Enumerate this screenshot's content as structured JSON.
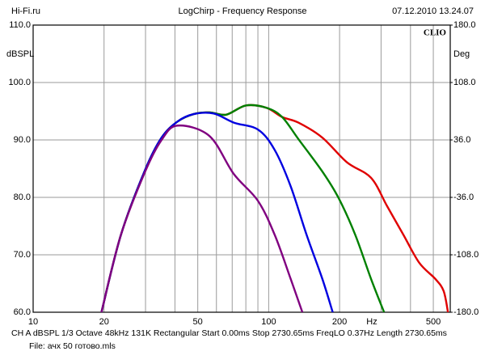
{
  "chart_data": {
    "type": "line",
    "header": [
      "Hi-Fi.ru",
      "LogChirp - Frequency Response",
      "07.12.2010 13.24.07"
    ],
    "ylabel": "dBSPL",
    "y2label": "Deg",
    "badge": "CLIO",
    "xlabel": "Hz",
    "log_x": true,
    "xlim": [
      10,
      590
    ],
    "ylim": [
      60,
      110
    ],
    "y2lim": [
      -180,
      180
    ],
    "xticks": [
      10,
      20,
      50,
      100,
      200,
      500
    ],
    "xminor": [
      30,
      40,
      60,
      70,
      80,
      90,
      300,
      400
    ],
    "yticks": [
      {
        "value": 60,
        "label": "60.0"
      },
      {
        "value": 70,
        "label": "70.0"
      },
      {
        "value": 80,
        "label": "80.0"
      },
      {
        "value": 90,
        "label": "90.0"
      },
      {
        "value": 100,
        "label": "100.0"
      },
      {
        "value": 110,
        "label": "110.0"
      }
    ],
    "y2ticks": [
      {
        "value": -180,
        "label": "-180.0"
      },
      {
        "value": -108,
        "label": "-108.0"
      },
      {
        "value": -36,
        "label": "-36.0"
      },
      {
        "value": 36,
        "label": "36.0"
      },
      {
        "value": 108,
        "label": "108.0"
      },
      {
        "value": 180,
        "label": "180.0"
      }
    ],
    "grid": true,
    "series": [
      {
        "color": "#e00000",
        "x": [
          19.5,
          23.6,
          29.9,
          35.1,
          41,
          48,
          56,
          66,
          80,
          97.8,
          114,
          134,
          169,
          215,
          272,
          318,
          373,
          436,
          510,
          553,
          577
        ],
        "values": [
          60,
          73.5,
          84.8,
          90.4,
          93.2,
          94.5,
          94.8,
          94.4,
          96,
          95.6,
          94,
          93,
          90.4,
          86.1,
          83.4,
          78.5,
          73.5,
          68.6,
          65.8,
          63.7,
          60
        ]
      },
      {
        "color": "#008000",
        "x": [
          19.5,
          23.6,
          29.9,
          35.1,
          41,
          48,
          56,
          66,
          80,
          97.8,
          114,
          134,
          169,
          198,
          233,
          272,
          309
        ],
        "values": [
          60,
          73.5,
          84.8,
          90.4,
          93.2,
          94.5,
          94.8,
          94.4,
          96,
          95.6,
          94,
          90.1,
          84.5,
          79.9,
          73.5,
          65.8,
          60
        ]
      },
      {
        "color": "#0000e0",
        "x": [
          19.5,
          23.6,
          29.9,
          35.1,
          41,
          48,
          58.4,
          71.3,
          90.1,
          105.9,
          123.8,
          144.8,
          169,
          187
        ],
        "values": [
          60,
          73.5,
          84.8,
          90.4,
          93.2,
          94.5,
          94.6,
          93,
          91.8,
          88.3,
          82,
          73.5,
          65.8,
          60
        ]
      },
      {
        "color": "#800080",
        "x": [
          19.5,
          23.6,
          29.9,
          35.1,
          41,
          56,
          71,
          90,
          106,
          124,
          139
        ],
        "values": [
          60,
          73.5,
          84.5,
          90,
          92.5,
          90.7,
          84.1,
          79.4,
          73.5,
          65.8,
          60
        ]
      }
    ],
    "footer": [
      "CH A   dBSPL   1/3 Octave   48kHz   131K   Rectangular   Start 0.00ms   Stop 2730.65ms   FreqLO 0.37Hz   Length 2730.65ms",
      "File: ачх 50 готово.mls"
    ]
  }
}
